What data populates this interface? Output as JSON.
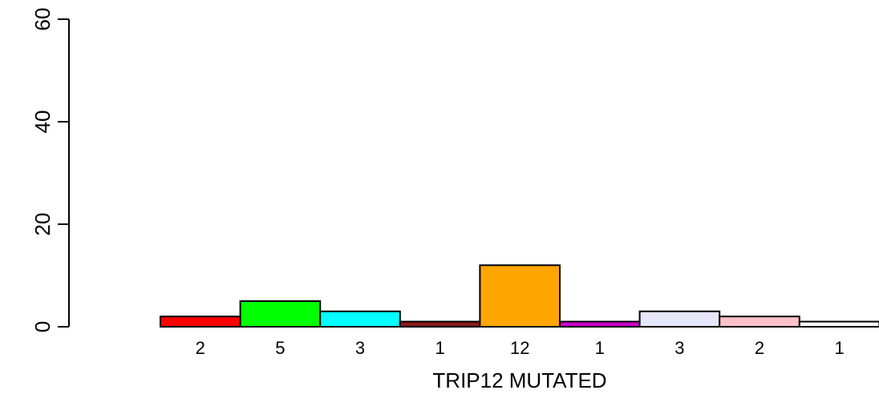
{
  "chart_data": {
    "type": "bar",
    "xlabel": "TRIP12 MUTATED",
    "ylabel": "",
    "ylim": [
      0,
      60
    ],
    "yticks": [
      0,
      20,
      40,
      60
    ],
    "grid": false,
    "legend": "none",
    "categories": [
      "2",
      "5",
      "3",
      "1",
      "12",
      "1",
      "3",
      "2",
      "1"
    ],
    "values": [
      2,
      5,
      3,
      1,
      12,
      1,
      3,
      2,
      1
    ],
    "colors": [
      "#ff0000",
      "#00ff00",
      "#00ffff",
      "#8b1a1a",
      "#ffa500",
      "#cc00cc",
      "#e6e6fa",
      "#ffc0cb",
      "#ffffff"
    ]
  }
}
